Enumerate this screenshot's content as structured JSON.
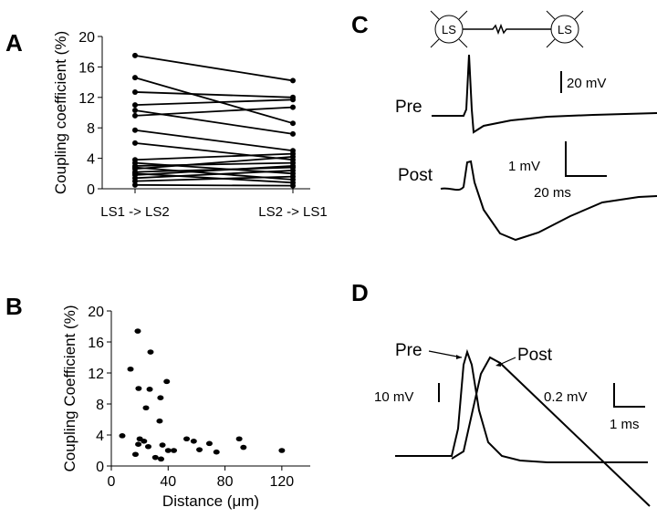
{
  "panel_labels": [
    "A",
    "B",
    "C",
    "D"
  ],
  "chart_data": [
    {
      "type": "paired",
      "y_label": "Coupling coefficient (%)",
      "categories": [
        "LS1 -> LS2",
        "LS2 -> LS1"
      ],
      "ylim": [
        0,
        20
      ],
      "yticks": [
        0,
        4,
        8,
        12,
        16,
        20
      ],
      "color": "#000000",
      "series": [
        {
          "values": [
            17.5,
            14.2
          ]
        },
        {
          "values": [
            14.6,
            8.6
          ]
        },
        {
          "values": [
            12.7,
            12.0
          ]
        },
        {
          "values": [
            11.0,
            11.7
          ]
        },
        {
          "values": [
            10.3,
            7.2
          ]
        },
        {
          "values": [
            9.6,
            10.7
          ]
        },
        {
          "values": [
            7.7,
            5.0
          ]
        },
        {
          "values": [
            6.0,
            3.8
          ]
        },
        {
          "values": [
            3.8,
            4.6
          ]
        },
        {
          "values": [
            3.4,
            2.0
          ]
        },
        {
          "values": [
            3.0,
            3.4
          ]
        },
        {
          "values": [
            2.8,
            1.2
          ]
        },
        {
          "values": [
            2.6,
            4.2
          ]
        },
        {
          "values": [
            2.2,
            2.8
          ]
        },
        {
          "values": [
            2.0,
            0.8
          ]
        },
        {
          "values": [
            1.8,
            3.0
          ]
        },
        {
          "values": [
            1.4,
            2.4
          ]
        },
        {
          "values": [
            1.0,
            1.6
          ]
        },
        {
          "values": [
            0.5,
            0.4
          ]
        }
      ]
    },
    {
      "type": "scatter",
      "x_label": "Distance (μm)",
      "y_label": "Coupling Coefficient (%)",
      "xlim": [
        0,
        140
      ],
      "xticks": [
        0,
        40,
        80,
        120
      ],
      "ylim": [
        0,
        20
      ],
      "yticks": [
        0,
        4,
        8,
        12,
        16,
        20
      ],
      "color": "#000000",
      "x": [
        18.6,
        27.6,
        13.5,
        19.2,
        39,
        27,
        34.6,
        24.4,
        34,
        7.7,
        20,
        23,
        19,
        26,
        36,
        40,
        44,
        53,
        58,
        62,
        74,
        69,
        90,
        93,
        120,
        17,
        31,
        35
      ],
      "values": [
        17.4,
        14.7,
        12.5,
        10.0,
        10.9,
        9.9,
        8.8,
        7.5,
        5.8,
        3.9,
        3.5,
        3.2,
        2.8,
        2.5,
        2.7,
        2.0,
        2.0,
        3.5,
        3.2,
        2.1,
        1.8,
        2.9,
        3.5,
        2.4,
        2.0,
        1.5,
        1.1,
        0.9
      ]
    }
  ],
  "panel_c": {
    "neurons": [
      "LS",
      "LS"
    ],
    "pre": "Pre",
    "post": "Post",
    "scale_pre": "20 mV",
    "scale_post_v": "1 mV",
    "scale_t": "20 ms"
  },
  "panel_d": {
    "pre": "Pre",
    "post": "Post",
    "scale_pre": "10 mV",
    "scale_post_v": "0.2 mV",
    "scale_t": "1 ms"
  }
}
